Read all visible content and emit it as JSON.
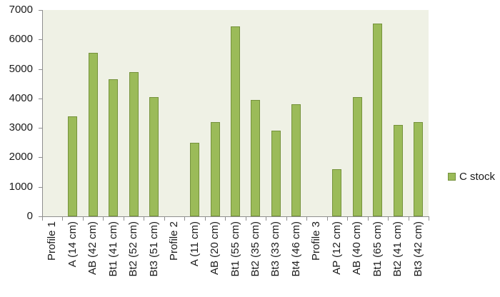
{
  "chart_data": {
    "type": "bar",
    "title": "",
    "xlabel": "",
    "ylabel": "",
    "ylim": [
      0,
      7000
    ],
    "yticks": [
      0,
      1000,
      2000,
      3000,
      4000,
      5000,
      6000,
      7000
    ],
    "grid": false,
    "legend_position": "right",
    "categories": [
      "Profile 1",
      "A (14 cm)",
      "AB (42 cm)",
      "Bt1 (41 cm)",
      "Bt2 (52 cm)",
      "Bt3 (51 cm)",
      "Profile 2",
      "A (11 cm)",
      "AB (20 cm)",
      "Bt1 (55 cm)",
      "Bt2 (35 cm)",
      "Bt3 (33 cm)",
      "Bt4 (46 cm)",
      "Profile 3",
      "AP (12 cm)",
      "AB (40 cm)",
      "Bt1 (65 cm)",
      "Bt2 (41 cm)",
      "Bt3 (42 cm)"
    ],
    "series": [
      {
        "name": "C stock",
        "values": [
          null,
          3400,
          5550,
          4650,
          4900,
          4050,
          null,
          2500,
          3200,
          6450,
          3950,
          2900,
          3800,
          null,
          1600,
          4050,
          6550,
          3100,
          3200
        ]
      }
    ],
    "colors": {
      "bar_fill": "#9bbb59",
      "bar_border": "#75923c",
      "plot_background": "#eff1e5",
      "axis": "#8e8e8e",
      "text": "#1a1a1a",
      "canvas_background": "#ffffff"
    }
  }
}
